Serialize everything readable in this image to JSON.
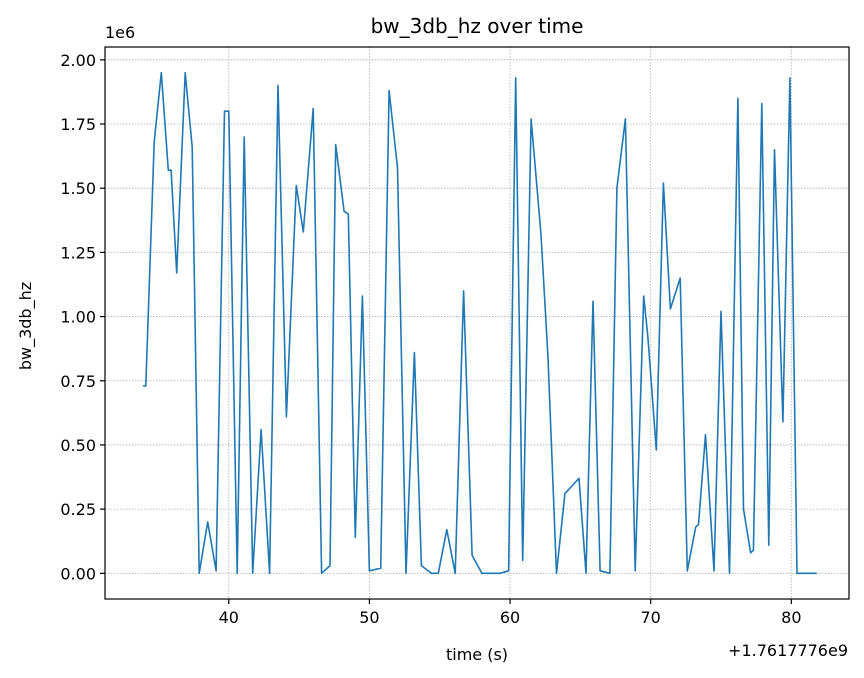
{
  "chart_data": {
    "type": "line",
    "title": "bw_3db_hz over time",
    "xlabel": "time (s)",
    "ylabel": "bw_3db_hz",
    "x_offset_label": "+1.7617776e9",
    "y_scale_label": "1e6",
    "xlim": [
      31.2,
      84.1
    ],
    "ylim": [
      -0.1,
      2.05
    ],
    "xticks": [
      40,
      50,
      60,
      70,
      80
    ],
    "xtick_labels": [
      "40",
      "50",
      "60",
      "70",
      "80"
    ],
    "yticks": [
      0.0,
      0.25,
      0.5,
      0.75,
      1.0,
      1.25,
      1.5,
      1.75,
      2.0
    ],
    "ytick_labels": [
      "0.00",
      "0.25",
      "0.50",
      "0.75",
      "1.00",
      "1.25",
      "1.50",
      "1.75",
      "2.00"
    ],
    "grid": true,
    "color": "#1f77b4",
    "series": [
      {
        "x": [
          33.9,
          34.1,
          34.7,
          35.2,
          35.7,
          35.9,
          36.3,
          36.9,
          37.4,
          37.9,
          38.5,
          39.1,
          39.7,
          40.0,
          40.6,
          41.1,
          41.7,
          42.3,
          42.9,
          43.5,
          44.1,
          44.8,
          45.3,
          46.0,
          46.6,
          47.2,
          47.6,
          48.2,
          48.5,
          49.0,
          49.5,
          50.0,
          50.8,
          51.4,
          52.0,
          52.6,
          53.2,
          53.7,
          54.4,
          54.9,
          55.5,
          56.1,
          56.7,
          57.3,
          58.0,
          58.6,
          59.3,
          59.9,
          60.4,
          60.9,
          61.5,
          62.2,
          62.7,
          63.3,
          63.9,
          64.4,
          64.9,
          65.4,
          65.9,
          66.4,
          67.1,
          67.6,
          68.2,
          68.9,
          69.5,
          69.8,
          70.4,
          70.9,
          71.4,
          72.1,
          72.6,
          73.2,
          73.4,
          73.9,
          74.5,
          75.0,
          75.6,
          76.2,
          76.6,
          77.1,
          77.3,
          77.9,
          78.4,
          78.8,
          79.4,
          79.9,
          80.4,
          81.0,
          81.8
        ],
        "y": [
          0.73,
          0.73,
          1.68,
          1.95,
          1.57,
          1.57,
          1.17,
          1.95,
          1.66,
          0.0,
          0.2,
          0.01,
          1.8,
          1.8,
          0.0,
          1.7,
          0.0,
          0.56,
          0.0,
          1.9,
          0.61,
          1.51,
          1.33,
          1.81,
          0.0,
          0.03,
          1.67,
          1.41,
          1.4,
          0.14,
          1.08,
          0.01,
          0.02,
          1.88,
          1.58,
          0.0,
          0.86,
          0.03,
          0.0,
          0.0,
          0.17,
          0.0,
          1.1,
          0.07,
          0.0,
          0.0,
          0.0,
          0.01,
          1.93,
          0.05,
          1.77,
          1.32,
          0.84,
          0.0,
          0.31,
          0.34,
          0.37,
          0.0,
          1.06,
          0.01,
          0.0,
          1.5,
          1.77,
          0.01,
          1.08,
          0.92,
          0.48,
          1.52,
          1.03,
          1.15,
          0.01,
          0.18,
          0.19,
          0.54,
          0.01,
          1.02,
          0.0,
          1.85,
          0.25,
          0.08,
          0.09,
          1.83,
          0.11,
          1.65,
          0.59,
          1.93,
          0.0,
          0.0,
          0.0
        ]
      }
    ]
  }
}
